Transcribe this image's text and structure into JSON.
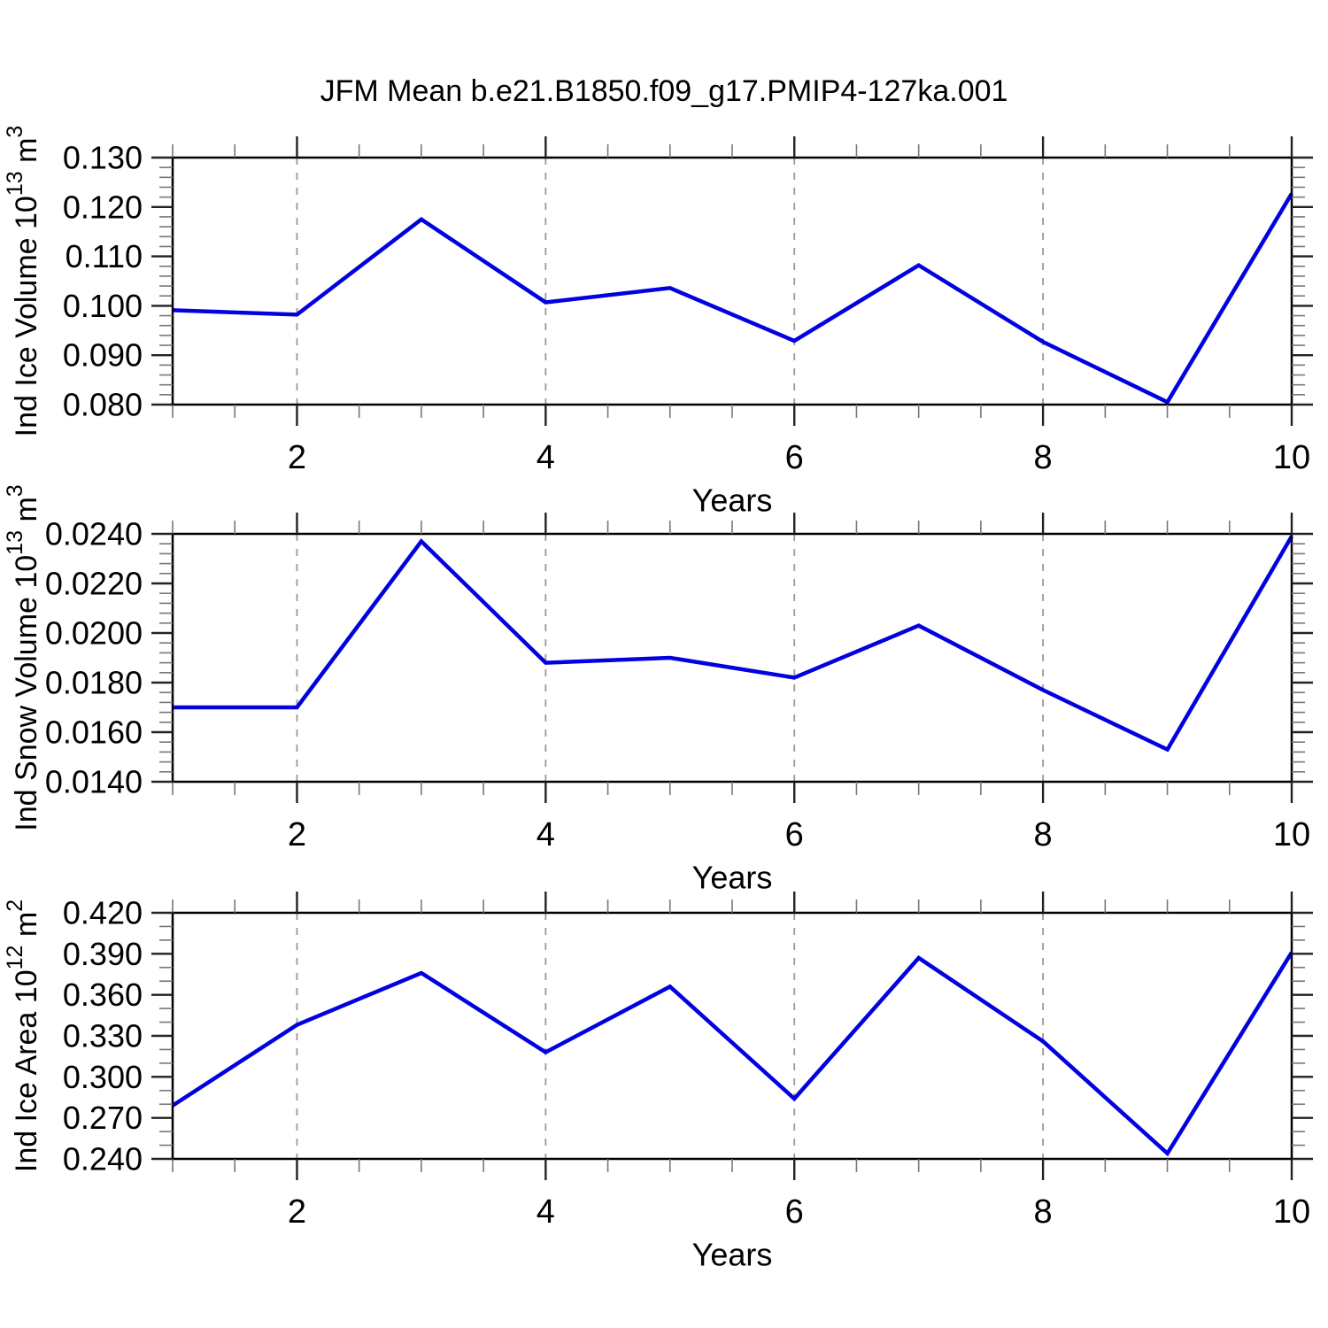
{
  "title": "JFM Mean b.e21.B1850.f09_g17.PMIP4-127ka.001",
  "colors": {
    "series": "#0000e0",
    "frame": "#000000",
    "grid": "#999999",
    "major_tick": "#222222",
    "minor_tick": "#777777",
    "text": "#000000"
  },
  "chart_data": [
    {
      "type": "line",
      "panel": "ice-volume",
      "ylabel_text": "Ind Ice Volume 10¹³ m³",
      "ylabel_segments": [
        {
          "t": "Ind Ice Volume 10"
        },
        {
          "t": "13",
          "sup": true
        },
        {
          "t": " m"
        },
        {
          "t": "3",
          "sup": true
        }
      ],
      "xlabel": "Years",
      "x": [
        1,
        2,
        3,
        4,
        5,
        6,
        7,
        8,
        9,
        10
      ],
      "values": [
        0.0991,
        0.0982,
        0.1175,
        0.1007,
        0.1036,
        0.0929,
        0.1082,
        0.0927,
        0.0805,
        0.1227
      ],
      "xlim": [
        1,
        10
      ],
      "ylim": [
        0.08,
        0.13
      ],
      "ytick_values": [
        0.08,
        0.09,
        0.1,
        0.11,
        0.12,
        0.13
      ],
      "ytick_labels": [
        "0.080",
        "0.090",
        "0.100",
        "0.110",
        "0.120",
        "0.130"
      ],
      "y_minor_step": 0.002,
      "xtick_values": [
        2,
        4,
        6,
        8,
        10
      ],
      "xtick_labels": [
        "2",
        "4",
        "6",
        "8",
        "10"
      ],
      "x_minor_step": 0.5,
      "grid_x": [
        2,
        4,
        6,
        8
      ],
      "legend": "none",
      "grid": "vertical-dashed"
    },
    {
      "type": "line",
      "panel": "snow-volume",
      "ylabel_text": "Ind Snow Volume 10¹³ m³",
      "ylabel_segments": [
        {
          "t": "Ind Snow Volume 10"
        },
        {
          "t": "13",
          "sup": true
        },
        {
          "t": " m"
        },
        {
          "t": "3",
          "sup": true
        }
      ],
      "xlabel": "Years",
      "x": [
        1,
        2,
        3,
        4,
        5,
        6,
        7,
        8,
        9,
        10
      ],
      "values": [
        0.017,
        0.017,
        0.0237,
        0.0188,
        0.019,
        0.0182,
        0.0203,
        0.0177,
        0.0153,
        0.0239
      ],
      "xlim": [
        1,
        10
      ],
      "ylim": [
        0.014,
        0.024
      ],
      "ytick_values": [
        0.014,
        0.016,
        0.018,
        0.02,
        0.022,
        0.024
      ],
      "ytick_labels": [
        "0.0140",
        "0.0160",
        "0.0180",
        "0.0200",
        "0.0220",
        "0.0240"
      ],
      "y_minor_step": 0.0004,
      "xtick_values": [
        2,
        4,
        6,
        8,
        10
      ],
      "xtick_labels": [
        "2",
        "4",
        "6",
        "8",
        "10"
      ],
      "x_minor_step": 0.5,
      "grid_x": [
        2,
        4,
        6,
        8
      ],
      "legend": "none",
      "grid": "vertical-dashed"
    },
    {
      "type": "line",
      "panel": "ice-area",
      "ylabel_text": "Ind Ice Area 10¹² m²",
      "ylabel_segments": [
        {
          "t": "Ind Ice Area 10"
        },
        {
          "t": "12",
          "sup": true
        },
        {
          "t": " m"
        },
        {
          "t": "2",
          "sup": true
        }
      ],
      "xlabel": "Years",
      "x": [
        1,
        2,
        3,
        4,
        5,
        6,
        7,
        8,
        9,
        10
      ],
      "values": [
        0.279,
        0.338,
        0.376,
        0.318,
        0.366,
        0.284,
        0.387,
        0.326,
        0.244,
        0.391
      ],
      "xlim": [
        1,
        10
      ],
      "ylim": [
        0.24,
        0.42
      ],
      "ytick_values": [
        0.24,
        0.27,
        0.3,
        0.33,
        0.36,
        0.39,
        0.42
      ],
      "ytick_labels": [
        "0.240",
        "0.270",
        "0.300",
        "0.330",
        "0.360",
        "0.390",
        "0.420"
      ],
      "y_minor_step": 0.01,
      "xtick_values": [
        2,
        4,
        6,
        8,
        10
      ],
      "xtick_labels": [
        "2",
        "4",
        "6",
        "8",
        "10"
      ],
      "x_minor_step": 0.5,
      "grid_x": [
        2,
        4,
        6,
        8
      ],
      "legend": "none",
      "grid": "vertical-dashed"
    }
  ]
}
